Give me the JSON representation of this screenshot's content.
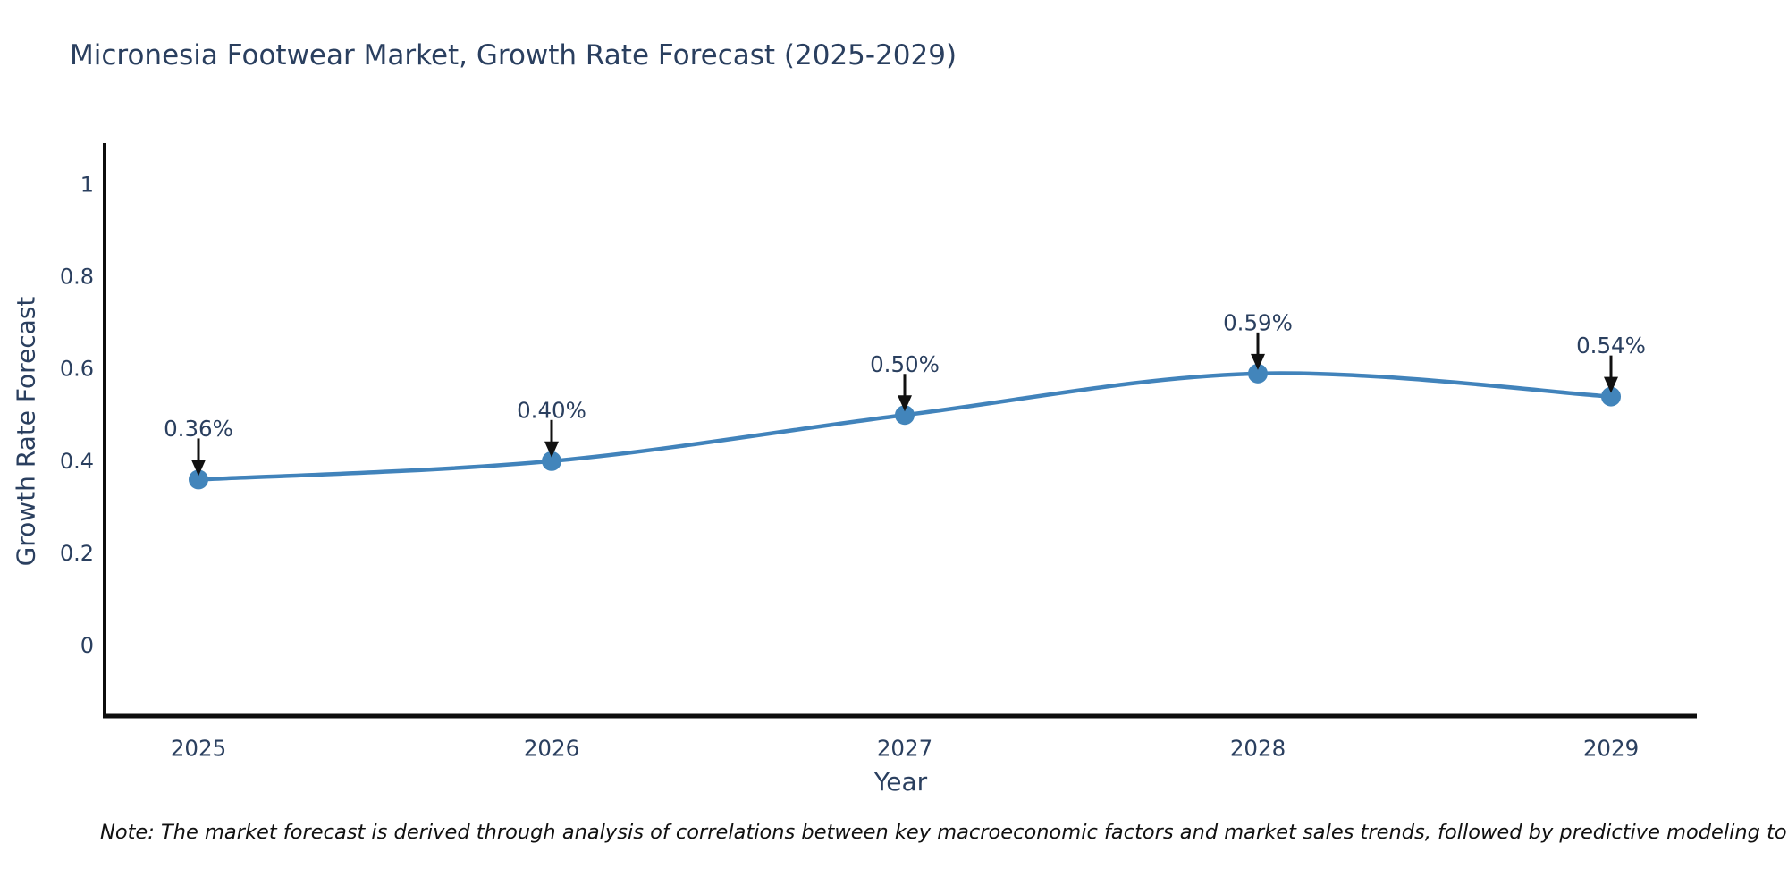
{
  "chart_data": {
    "type": "line",
    "title": "Micronesia Footwear Market, Growth Rate Forecast (2025-2029)",
    "xlabel": "Year",
    "ylabel": "Growth Rate Forecast",
    "x": [
      2025,
      2026,
      2027,
      2028,
      2029
    ],
    "categories": [
      "2025",
      "2026",
      "2027",
      "2028",
      "2029"
    ],
    "values": [
      0.36,
      0.4,
      0.5,
      0.59,
      0.54
    ],
    "point_labels": [
      "0.36%",
      "0.40%",
      "0.50%",
      "0.59%",
      "0.54%"
    ],
    "yticks": [
      0,
      0.2,
      0.4,
      0.6,
      0.8,
      1
    ],
    "ytick_labels": [
      "0",
      "0.2",
      "0.4",
      "0.6",
      "0.8",
      "1"
    ],
    "ylim": [
      -0.16,
      1.09
    ],
    "grid": false,
    "legend": "none",
    "line_shape": "spline",
    "colors": {
      "line": "#4183bb",
      "marker": "#4285bb",
      "axis": "#0d0d0d",
      "text": "#2a3f5f",
      "annotation_text": "#2a3f5f",
      "annotation_arrow": "#111111"
    }
  },
  "footnote": "Note: The market forecast is derived through analysis of correlations between key macroeconomic factors and market sales trends, followed by predictive modeling to project future sales"
}
